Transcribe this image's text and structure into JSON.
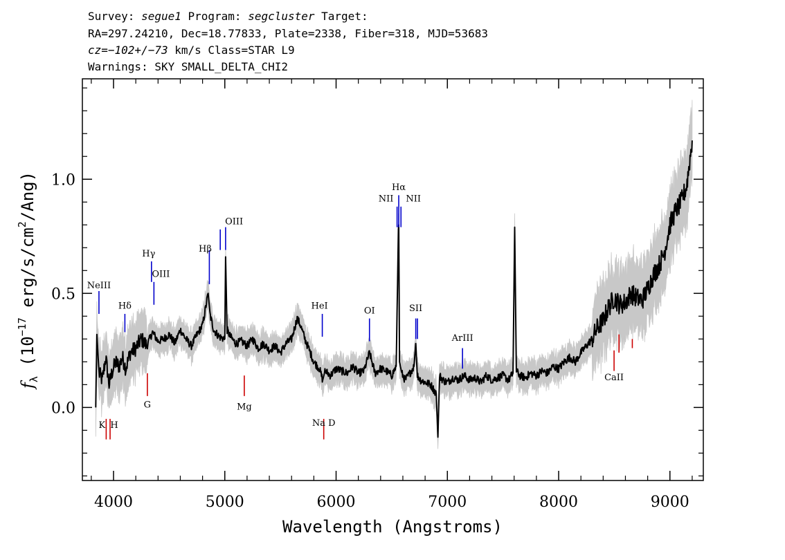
{
  "header": {
    "line1_prefix": "Survey: ",
    "survey": "segue1",
    "line1_mid": " Program: ",
    "program": "segcluster",
    "line1_suffix": " Target:",
    "line2": "RA=297.24210, Dec=18.77833, Plate=2338, Fiber=318, MJD=53683",
    "cz_value": "cz=−102+/−73",
    "line3_rest": " km/s Class=STAR L9",
    "line4": "Warnings: SKY SMALL_DELTA_CHI2"
  },
  "chart_data": {
    "type": "line",
    "xlabel": "Wavelength (Angstroms)",
    "ylabel_main": "f",
    "ylabel_sub": "λ",
    "ylabel_rest": " (10",
    "ylabel_exp": "−17",
    "ylabel_rest2": " erg/s/cm",
    "ylabel_exp2": "2",
    "ylabel_end": "/Ang)",
    "xlim": [
      3720,
      9300
    ],
    "ylim": [
      -0.32,
      1.44
    ],
    "x_ticks": [
      4000,
      5000,
      6000,
      7000,
      8000,
      9000
    ],
    "x_tick_labels": [
      "4000",
      "5000",
      "6000",
      "7000",
      "8000",
      "9000"
    ],
    "y_ticks": [
      0.0,
      0.5,
      1.0
    ],
    "y_tick_labels": [
      "0.0",
      "0.5",
      "1.0"
    ],
    "colors": {
      "spectrum": "#000000",
      "error": "#c8c8c8",
      "emission": "#0000cc",
      "absorption": "#cc0000"
    },
    "series": [
      {
        "role": "flux",
        "x": [
          3840,
          3850,
          3870,
          3900,
          3930,
          3960,
          3990,
          4020,
          4050,
          4080,
          4110,
          4150,
          4200,
          4250,
          4300,
          4350,
          4400,
          4450,
          4500,
          4550,
          4600,
          4650,
          4700,
          4750,
          4800,
          4850,
          4870,
          4900,
          4950,
          5000,
          5007,
          5020,
          5050,
          5100,
          5150,
          5200,
          5250,
          5300,
          5350,
          5400,
          5450,
          5500,
          5550,
          5600,
          5650,
          5680,
          5720,
          5760,
          5800,
          5850,
          5880,
          5900,
          5950,
          6000,
          6050,
          6100,
          6150,
          6200,
          6250,
          6300,
          6350,
          6400,
          6450,
          6500,
          6540,
          6560,
          6563,
          6570,
          6590,
          6620,
          6650,
          6700,
          6716,
          6730,
          6760,
          6800,
          6850,
          6900,
          6915,
          6930,
          6960,
          7000,
          7050,
          7100,
          7150,
          7200,
          7250,
          7300,
          7350,
          7400,
          7450,
          7500,
          7550,
          7590,
          7605,
          7620,
          7650,
          7700,
          7750,
          7800,
          7850,
          7900,
          7950,
          8000,
          8050,
          8100,
          8150,
          8200,
          8250,
          8300,
          8350,
          8400,
          8450,
          8500,
          8550,
          8600,
          8650,
          8700,
          8750,
          8800,
          8850,
          8900,
          8950,
          9000,
          9050,
          9100,
          9150,
          9200
        ],
        "y": [
          0.0,
          0.32,
          0.15,
          0.12,
          0.22,
          0.1,
          0.16,
          0.2,
          0.18,
          0.22,
          0.17,
          0.24,
          0.26,
          0.3,
          0.27,
          0.33,
          0.29,
          0.3,
          0.32,
          0.28,
          0.34,
          0.3,
          0.27,
          0.32,
          0.36,
          0.5,
          0.4,
          0.34,
          0.31,
          0.3,
          0.66,
          0.34,
          0.31,
          0.28,
          0.29,
          0.27,
          0.3,
          0.26,
          0.28,
          0.25,
          0.27,
          0.24,
          0.28,
          0.3,
          0.39,
          0.36,
          0.3,
          0.25,
          0.2,
          0.17,
          0.12,
          0.16,
          0.14,
          0.17,
          0.16,
          0.15,
          0.18,
          0.15,
          0.16,
          0.24,
          0.15,
          0.17,
          0.16,
          0.14,
          0.18,
          0.78,
          0.8,
          0.2,
          0.15,
          0.12,
          0.14,
          0.18,
          0.28,
          0.14,
          0.12,
          0.11,
          0.1,
          0.06,
          -0.13,
          0.14,
          0.12,
          0.11,
          0.13,
          0.12,
          0.14,
          0.12,
          0.13,
          0.11,
          0.14,
          0.12,
          0.13,
          0.14,
          0.12,
          0.15,
          0.79,
          0.16,
          0.14,
          0.13,
          0.15,
          0.14,
          0.16,
          0.15,
          0.18,
          0.17,
          0.2,
          0.22,
          0.2,
          0.24,
          0.27,
          0.3,
          0.35,
          0.38,
          0.44,
          0.48,
          0.45,
          0.46,
          0.5,
          0.48,
          0.47,
          0.52,
          0.58,
          0.62,
          0.68,
          0.8,
          0.86,
          0.9,
          0.97,
          1.17
        ]
      }
    ],
    "line_markers": [
      {
        "label": "NeIII",
        "x": 3869,
        "kind": "emission",
        "y_top": 0.51,
        "y_bottom": 0.41,
        "label_y": 0.51,
        "dx": 0
      },
      {
        "label": "Hδ",
        "x": 4102,
        "kind": "emission",
        "y_top": 0.41,
        "y_bottom": 0.33,
        "label_y": 0.42,
        "dx": 0
      },
      {
        "label": "Hγ",
        "x": 4341,
        "kind": "emission",
        "y_top": 0.64,
        "y_bottom": 0.55,
        "label_y": 0.65,
        "dx": -4
      },
      {
        "label": "OIII",
        "x": 4363,
        "kind": "emission",
        "y_top": 0.55,
        "y_bottom": 0.45,
        "label_y": 0.56,
        "dx": 10
      },
      {
        "label": "Hβ",
        "x": 4861,
        "kind": "emission",
        "y_top": 0.69,
        "y_bottom": 0.54,
        "label_y": 0.67,
        "dx": -6
      },
      {
        "label": "OIII",
        "x": 4959,
        "kind": "emission",
        "y_top": 0.78,
        "y_bottom": 0.69,
        "label_y": 0.79,
        "dx": 20
      },
      {
        "label": "OIII",
        "x": 5007,
        "kind": "emission",
        "y_top": 0.79,
        "y_bottom": 0.69,
        "label_y": null,
        "dx": 0
      },
      {
        "label": "HeI",
        "x": 5876,
        "kind": "emission",
        "y_top": 0.41,
        "y_bottom": 0.31,
        "label_y": 0.42,
        "dx": -4
      },
      {
        "label": "OI",
        "x": 6300,
        "kind": "emission",
        "y_top": 0.39,
        "y_bottom": 0.29,
        "label_y": 0.4,
        "dx": 0
      },
      {
        "label": "NII",
        "x": 6548,
        "kind": "emission",
        "y_top": 0.88,
        "y_bottom": 0.79,
        "label_y": 0.89,
        "dx": -16
      },
      {
        "label": "Hα",
        "x": 6563,
        "kind": "emission",
        "y_top": 0.93,
        "y_bottom": 0.79,
        "label_y": 0.94,
        "dx": 0
      },
      {
        "label": "NII",
        "x": 6583,
        "kind": "emission",
        "y_top": 0.88,
        "y_bottom": 0.79,
        "label_y": 0.89,
        "dx": 18
      },
      {
        "label": "SII",
        "x": 6716,
        "kind": "emission",
        "y_top": 0.39,
        "y_bottom": 0.3,
        "label_y": 0.41,
        "dx": 0
      },
      {
        "label": "SII",
        "x": 6731,
        "kind": "emission",
        "y_top": 0.39,
        "y_bottom": 0.3,
        "label_y": null,
        "dx": 0
      },
      {
        "label": "ArIII",
        "x": 7136,
        "kind": "emission",
        "y_top": 0.26,
        "y_bottom": 0.17,
        "label_y": 0.28,
        "dx": 0
      },
      {
        "label": "K",
        "x": 3934,
        "kind": "absorption",
        "y_top": -0.05,
        "y_bottom": -0.14,
        "label_y": -0.09,
        "dx": -6
      },
      {
        "label": "H",
        "x": 3969,
        "kind": "absorption",
        "y_top": -0.05,
        "y_bottom": -0.14,
        "label_y": -0.09,
        "dx": 6
      },
      {
        "label": "G",
        "x": 4304,
        "kind": "absorption",
        "y_top": 0.15,
        "y_bottom": 0.05,
        "label_y": 0.0,
        "dx": 0
      },
      {
        "label": "Mg",
        "x": 5175,
        "kind": "absorption",
        "y_top": 0.14,
        "y_bottom": 0.05,
        "label_y": -0.01,
        "dx": 0
      },
      {
        "label": "Na D",
        "x": 5889,
        "kind": "absorption",
        "y_top": -0.05,
        "y_bottom": -0.14,
        "label_y": -0.08,
        "dx": 0
      },
      {
        "label": "CaII",
        "x": 8498,
        "kind": "absorption",
        "y_top": 0.25,
        "y_bottom": 0.16,
        "label_y": 0.12,
        "dx": 0
      },
      {
        "label": "CaII",
        "x": 8542,
        "kind": "absorption",
        "y_top": 0.32,
        "y_bottom": 0.24,
        "label_y": null,
        "dx": 0
      },
      {
        "label": "CaII",
        "x": 8662,
        "kind": "absorption",
        "y_top": 0.3,
        "y_bottom": 0.26,
        "label_y": null,
        "dx": 0
      }
    ]
  }
}
